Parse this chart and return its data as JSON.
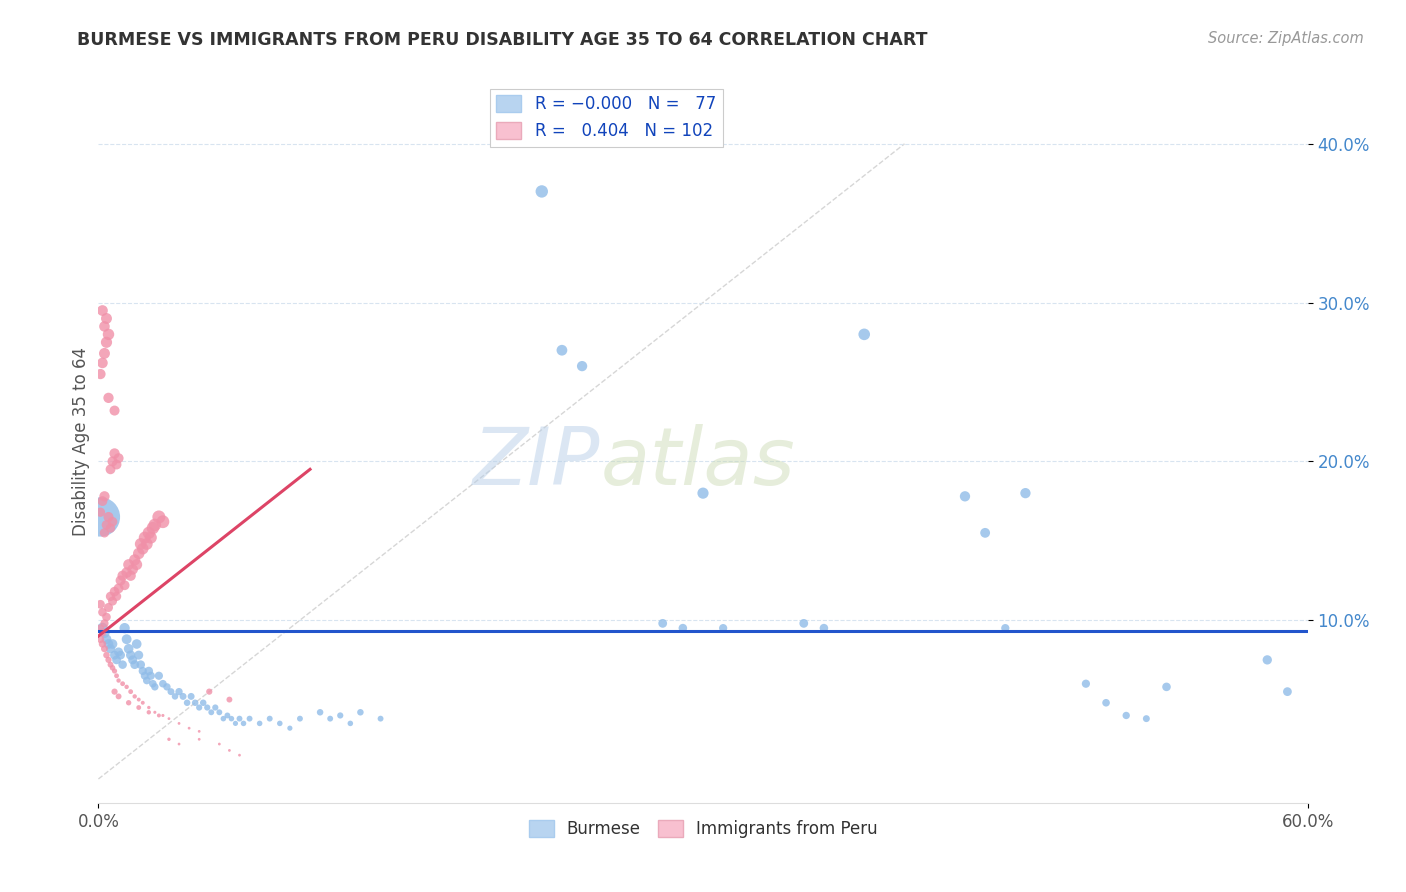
{
  "title": "BURMESE VS IMMIGRANTS FROM PERU DISABILITY AGE 35 TO 64 CORRELATION CHART",
  "source": "Source: ZipAtlas.com",
  "ylabel": "Disability Age 35 to 64",
  "xlim": [
    0.0,
    0.6
  ],
  "ylim": [
    -0.015,
    0.44
  ],
  "ytick_values": [
    0.1,
    0.2,
    0.3,
    0.4
  ],
  "burmese_color": "#90bce8",
  "peru_color": "#f090a8",
  "burmese_legend_color": "#b8d4f0",
  "peru_legend_color": "#f8c0d0",
  "burmese_line_color": "#2255cc",
  "peru_line_color": "#dd4466",
  "diagonal_color": "#cccccc",
  "watermark_zip": "ZIP",
  "watermark_atlas": "atlas",
  "burmese_line_y": 0.093,
  "peru_line_x0": 0.0,
  "peru_line_y0": 0.09,
  "peru_line_x1": 0.105,
  "peru_line_y1": 0.195,
  "burmese_scatter": [
    [
      0.001,
      0.165
    ],
    [
      0.002,
      0.095
    ],
    [
      0.003,
      0.092
    ],
    [
      0.004,
      0.088
    ],
    [
      0.005,
      0.085
    ],
    [
      0.006,
      0.082
    ],
    [
      0.007,
      0.085
    ],
    [
      0.008,
      0.078
    ],
    [
      0.009,
      0.075
    ],
    [
      0.01,
      0.08
    ],
    [
      0.011,
      0.078
    ],
    [
      0.012,
      0.072
    ],
    [
      0.013,
      0.095
    ],
    [
      0.014,
      0.088
    ],
    [
      0.015,
      0.082
    ],
    [
      0.016,
      0.078
    ],
    [
      0.017,
      0.075
    ],
    [
      0.018,
      0.072
    ],
    [
      0.019,
      0.085
    ],
    [
      0.02,
      0.078
    ],
    [
      0.021,
      0.072
    ],
    [
      0.022,
      0.068
    ],
    [
      0.023,
      0.065
    ],
    [
      0.024,
      0.062
    ],
    [
      0.025,
      0.068
    ],
    [
      0.026,
      0.065
    ],
    [
      0.027,
      0.06
    ],
    [
      0.028,
      0.058
    ],
    [
      0.03,
      0.065
    ],
    [
      0.032,
      0.06
    ],
    [
      0.034,
      0.058
    ],
    [
      0.036,
      0.055
    ],
    [
      0.038,
      0.052
    ],
    [
      0.04,
      0.055
    ],
    [
      0.042,
      0.052
    ],
    [
      0.044,
      0.048
    ],
    [
      0.046,
      0.052
    ],
    [
      0.048,
      0.048
    ],
    [
      0.05,
      0.045
    ],
    [
      0.052,
      0.048
    ],
    [
      0.054,
      0.045
    ],
    [
      0.056,
      0.042
    ],
    [
      0.058,
      0.045
    ],
    [
      0.06,
      0.042
    ],
    [
      0.062,
      0.038
    ],
    [
      0.064,
      0.04
    ],
    [
      0.066,
      0.038
    ],
    [
      0.068,
      0.035
    ],
    [
      0.07,
      0.038
    ],
    [
      0.072,
      0.035
    ],
    [
      0.075,
      0.038
    ],
    [
      0.08,
      0.035
    ],
    [
      0.085,
      0.038
    ],
    [
      0.09,
      0.035
    ],
    [
      0.095,
      0.032
    ],
    [
      0.1,
      0.038
    ],
    [
      0.11,
      0.042
    ],
    [
      0.115,
      0.038
    ],
    [
      0.12,
      0.04
    ],
    [
      0.125,
      0.035
    ],
    [
      0.13,
      0.042
    ],
    [
      0.14,
      0.038
    ],
    [
      0.22,
      0.37
    ],
    [
      0.23,
      0.27
    ],
    [
      0.24,
      0.26
    ],
    [
      0.28,
      0.098
    ],
    [
      0.29,
      0.095
    ],
    [
      0.3,
      0.18
    ],
    [
      0.31,
      0.095
    ],
    [
      0.35,
      0.098
    ],
    [
      0.36,
      0.095
    ],
    [
      0.38,
      0.28
    ],
    [
      0.43,
      0.178
    ],
    [
      0.44,
      0.155
    ],
    [
      0.45,
      0.095
    ],
    [
      0.46,
      0.18
    ],
    [
      0.49,
      0.06
    ],
    [
      0.5,
      0.048
    ],
    [
      0.51,
      0.04
    ],
    [
      0.52,
      0.038
    ],
    [
      0.53,
      0.058
    ],
    [
      0.58,
      0.075
    ],
    [
      0.59,
      0.055
    ]
  ],
  "burmese_sizes": [
    800,
    60,
    55,
    50,
    48,
    45,
    48,
    42,
    40,
    42,
    40,
    38,
    55,
    50,
    48,
    45,
    42,
    40,
    48,
    42,
    38,
    35,
    33,
    30,
    38,
    35,
    30,
    28,
    35,
    30,
    28,
    25,
    22,
    28,
    25,
    22,
    25,
    22,
    20,
    22,
    20,
    18,
    20,
    18,
    16,
    18,
    16,
    14,
    18,
    16,
    18,
    16,
    18,
    16,
    14,
    18,
    22,
    18,
    20,
    16,
    22,
    18,
    80,
    60,
    55,
    40,
    38,
    65,
    35,
    40,
    38,
    70,
    55,
    50,
    35,
    55,
    35,
    30,
    28,
    25,
    38,
    45,
    40
  ],
  "peru_scatter": [
    [
      0.001,
      0.11
    ],
    [
      0.002,
      0.105
    ],
    [
      0.003,
      0.098
    ],
    [
      0.004,
      0.102
    ],
    [
      0.005,
      0.108
    ],
    [
      0.006,
      0.115
    ],
    [
      0.007,
      0.112
    ],
    [
      0.008,
      0.118
    ],
    [
      0.009,
      0.115
    ],
    [
      0.01,
      0.12
    ],
    [
      0.011,
      0.125
    ],
    [
      0.012,
      0.128
    ],
    [
      0.013,
      0.122
    ],
    [
      0.014,
      0.13
    ],
    [
      0.015,
      0.135
    ],
    [
      0.016,
      0.128
    ],
    [
      0.017,
      0.132
    ],
    [
      0.018,
      0.138
    ],
    [
      0.019,
      0.135
    ],
    [
      0.02,
      0.142
    ],
    [
      0.021,
      0.148
    ],
    [
      0.022,
      0.145
    ],
    [
      0.023,
      0.152
    ],
    [
      0.024,
      0.148
    ],
    [
      0.025,
      0.155
    ],
    [
      0.026,
      0.152
    ],
    [
      0.027,
      0.158
    ],
    [
      0.028,
      0.16
    ],
    [
      0.03,
      0.165
    ],
    [
      0.032,
      0.162
    ],
    [
      0.001,
      0.168
    ],
    [
      0.002,
      0.175
    ],
    [
      0.003,
      0.178
    ],
    [
      0.002,
      0.295
    ],
    [
      0.003,
      0.285
    ],
    [
      0.004,
      0.29
    ],
    [
      0.001,
      0.255
    ],
    [
      0.002,
      0.262
    ],
    [
      0.003,
      0.268
    ],
    [
      0.004,
      0.275
    ],
    [
      0.005,
      0.28
    ],
    [
      0.006,
      0.195
    ],
    [
      0.007,
      0.2
    ],
    [
      0.008,
      0.205
    ],
    [
      0.009,
      0.198
    ],
    [
      0.01,
      0.202
    ],
    [
      0.001,
      0.088
    ],
    [
      0.002,
      0.085
    ],
    [
      0.003,
      0.082
    ],
    [
      0.004,
      0.078
    ],
    [
      0.005,
      0.075
    ],
    [
      0.006,
      0.072
    ],
    [
      0.007,
      0.07
    ],
    [
      0.008,
      0.068
    ],
    [
      0.009,
      0.065
    ],
    [
      0.01,
      0.062
    ],
    [
      0.012,
      0.06
    ],
    [
      0.014,
      0.058
    ],
    [
      0.016,
      0.055
    ],
    [
      0.018,
      0.052
    ],
    [
      0.02,
      0.05
    ],
    [
      0.022,
      0.048
    ],
    [
      0.025,
      0.045
    ],
    [
      0.028,
      0.042
    ],
    [
      0.032,
      0.04
    ],
    [
      0.035,
      0.038
    ],
    [
      0.04,
      0.035
    ],
    [
      0.045,
      0.032
    ],
    [
      0.05,
      0.03
    ],
    [
      0.001,
      0.095
    ],
    [
      0.002,
      0.092
    ],
    [
      0.003,
      0.155
    ],
    [
      0.004,
      0.16
    ],
    [
      0.005,
      0.165
    ],
    [
      0.006,
      0.158
    ],
    [
      0.007,
      0.162
    ],
    [
      0.008,
      0.055
    ],
    [
      0.01,
      0.052
    ],
    [
      0.015,
      0.048
    ],
    [
      0.02,
      0.045
    ],
    [
      0.025,
      0.042
    ],
    [
      0.03,
      0.04
    ],
    [
      0.035,
      0.025
    ],
    [
      0.04,
      0.022
    ],
    [
      0.05,
      0.025
    ],
    [
      0.06,
      0.022
    ],
    [
      0.065,
      0.018
    ],
    [
      0.07,
      0.015
    ],
    [
      0.055,
      0.055
    ],
    [
      0.065,
      0.05
    ],
    [
      0.005,
      0.24
    ],
    [
      0.008,
      0.232
    ]
  ],
  "peru_sizes": [
    40,
    38,
    35,
    38,
    42,
    45,
    42,
    48,
    45,
    50,
    52,
    55,
    50,
    58,
    62,
    55,
    58,
    65,
    62,
    68,
    72,
    68,
    75,
    72,
    78,
    75,
    80,
    82,
    88,
    85,
    45,
    50,
    55,
    60,
    58,
    62,
    55,
    58,
    62,
    65,
    68,
    50,
    52,
    55,
    50,
    52,
    30,
    28,
    25,
    22,
    20,
    18,
    16,
    14,
    12,
    10,
    12,
    10,
    12,
    10,
    8,
    8,
    6,
    5,
    5,
    4,
    4,
    4,
    4,
    30,
    28,
    45,
    48,
    52,
    45,
    48,
    20,
    18,
    15,
    12,
    10,
    8,
    6,
    4,
    4,
    4,
    4,
    4,
    20,
    18,
    55,
    52
  ]
}
